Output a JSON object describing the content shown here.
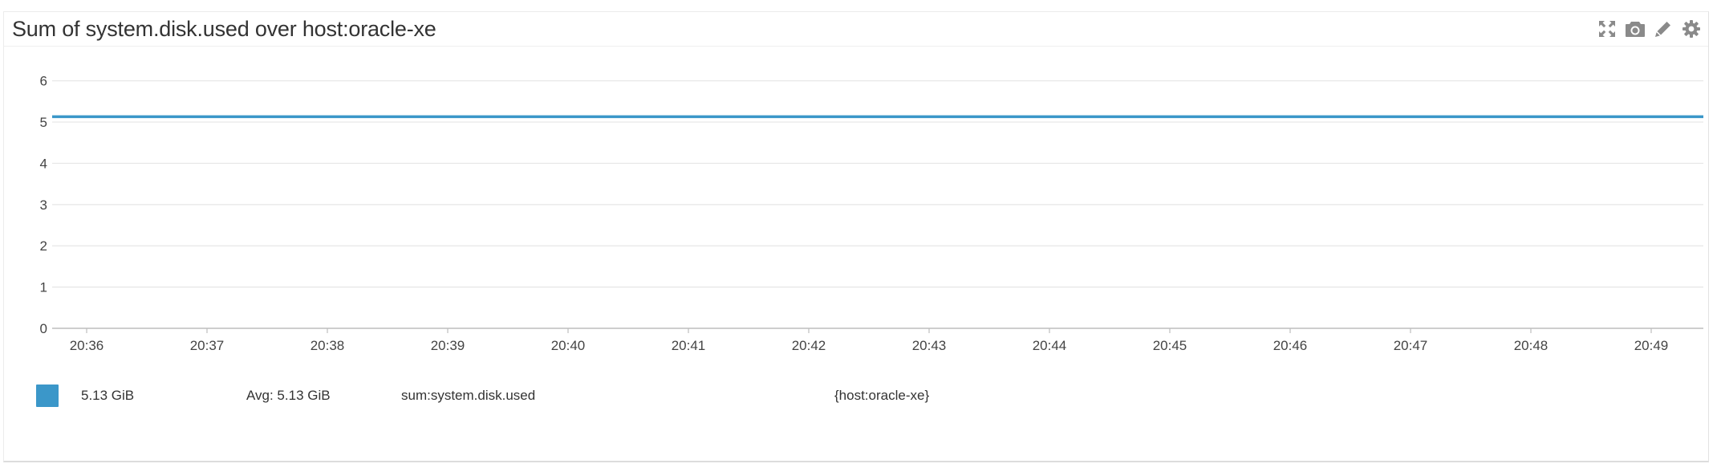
{
  "widget": {
    "title": "Sum of system.disk.used over host:oracle-xe",
    "toolbar": {
      "icons": [
        "expand-icon",
        "camera-icon",
        "pencil-icon",
        "gear-icon"
      ],
      "icon_color": "#8a8a8a"
    }
  },
  "chart_data": {
    "type": "line",
    "title": "Sum of system.disk.used over host:oracle-xe",
    "xlabel": "",
    "ylabel": "",
    "x": [
      "20:36",
      "20:37",
      "20:38",
      "20:39",
      "20:40",
      "20:41",
      "20:42",
      "20:43",
      "20:44",
      "20:45",
      "20:46",
      "20:47",
      "20:48",
      "20:49"
    ],
    "yticks": [
      0,
      1,
      2,
      3,
      4,
      5,
      6
    ],
    "ylim": [
      0,
      6.5
    ],
    "grid": true,
    "series": [
      {
        "name": "sum:system.disk.used",
        "color": "#3b97c9",
        "values": [
          5.13,
          5.13,
          5.13,
          5.13,
          5.13,
          5.13,
          5.13,
          5.13,
          5.13,
          5.13,
          5.13,
          5.13,
          5.13,
          5.13
        ]
      }
    ]
  },
  "legend": {
    "swatch_color": "#3b97c9",
    "value": "5.13 GiB",
    "avg": "Avg: 5.13 GiB",
    "metric": "sum:system.disk.used",
    "scope": "{host:oracle-xe}"
  }
}
